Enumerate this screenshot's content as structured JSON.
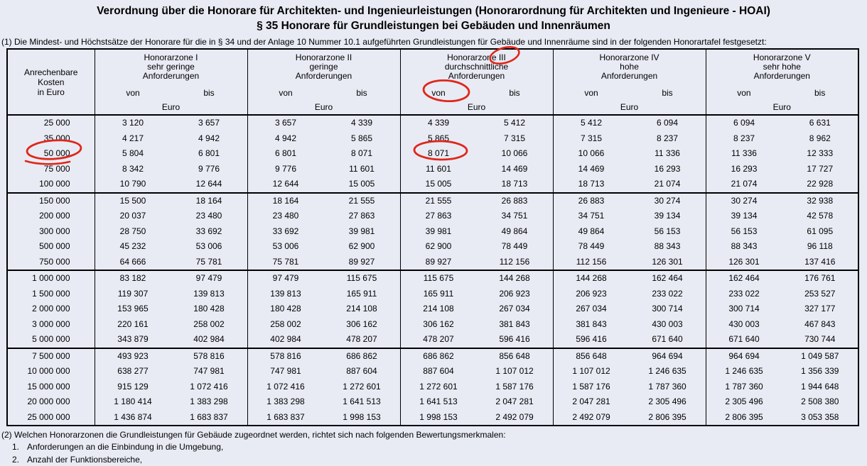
{
  "title_line1": "Verordnung über die Honorare für Architekten- und Ingenieurleistungen (Honorarordnung für Architekten und Ingenieure - HOAI)",
  "title_line2": "§ 35 Honorare für Grundleistungen bei Gebäuden und Innenräumen",
  "intro": "(1) Die Mindest- und Höchstsätze der Honorare für die in § 34 und der Anlage 10 Nummer 10.1 aufgeführten Grundleistungen für Gebäude und Innenräume sind in der folgenden Honorartafel festgesetzt:",
  "table": {
    "row_header": {
      "line1": "Anrechenbare",
      "line2": "Kosten",
      "line3": "in Euro"
    },
    "zones": [
      {
        "name": "Honorarzone I",
        "desc": "sehr geringe",
        "desc2": "Anforderungen",
        "von": "von",
        "bis": "bis",
        "unit": "Euro"
      },
      {
        "name": "Honorarzone II",
        "desc": "geringe",
        "desc2": "Anforderungen",
        "von": "von",
        "bis": "bis",
        "unit": "Euro"
      },
      {
        "name": "Honorarzone III",
        "desc": "durchschnittliche",
        "desc2": "Anforderungen",
        "von": "von",
        "bis": "bis",
        "unit": "Euro"
      },
      {
        "name": "Honorarzone IV",
        "desc": "hohe",
        "desc2": "Anforderungen",
        "von": "von",
        "bis": "bis",
        "unit": "Euro"
      },
      {
        "name": "Honorarzone V",
        "desc": "sehr hohe",
        "desc2": "Anforderungen",
        "von": "von",
        "bis": "bis",
        "unit": "Euro"
      }
    ],
    "groups": [
      {
        "rows": [
          {
            "kosten": "25 000",
            "values": [
              "3 120",
              "3 657",
              "3 657",
              "4 339",
              "4 339",
              "5 412",
              "5 412",
              "6 094",
              "6 094",
              "6 631"
            ]
          },
          {
            "kosten": "35 000",
            "values": [
              "4 217",
              "4 942",
              "4 942",
              "5 865",
              "5 865",
              "7 315",
              "7 315",
              "8 237",
              "8 237",
              "8 962"
            ]
          },
          {
            "kosten": "50 000",
            "values": [
              "5 804",
              "6 801",
              "6 801",
              "8 071",
              "8 071",
              "10 066",
              "10 066",
              "11 336",
              "11 336",
              "12 333"
            ]
          },
          {
            "kosten": "75 000",
            "values": [
              "8 342",
              "9 776",
              "9 776",
              "11 601",
              "11 601",
              "14 469",
              "14 469",
              "16 293",
              "16 293",
              "17 727"
            ]
          },
          {
            "kosten": "100 000",
            "values": [
              "10 790",
              "12 644",
              "12 644",
              "15 005",
              "15 005",
              "18 713",
              "18 713",
              "21 074",
              "21 074",
              "22 928"
            ]
          }
        ]
      },
      {
        "rows": [
          {
            "kosten": "150 000",
            "values": [
              "15 500",
              "18 164",
              "18 164",
              "21 555",
              "21 555",
              "26 883",
              "26 883",
              "30 274",
              "30 274",
              "32 938"
            ]
          },
          {
            "kosten": "200 000",
            "values": [
              "20 037",
              "23 480",
              "23 480",
              "27 863",
              "27 863",
              "34 751",
              "34 751",
              "39 134",
              "39 134",
              "42 578"
            ]
          },
          {
            "kosten": "300 000",
            "values": [
              "28 750",
              "33 692",
              "33 692",
              "39 981",
              "39 981",
              "49 864",
              "49 864",
              "56 153",
              "56 153",
              "61 095"
            ]
          },
          {
            "kosten": "500 000",
            "values": [
              "45 232",
              "53 006",
              "53 006",
              "62 900",
              "62 900",
              "78 449",
              "78 449",
              "88 343",
              "88 343",
              "96 118"
            ]
          },
          {
            "kosten": "750 000",
            "values": [
              "64 666",
              "75 781",
              "75 781",
              "89 927",
              "89 927",
              "112 156",
              "112 156",
              "126 301",
              "126 301",
              "137 416"
            ]
          }
        ]
      },
      {
        "rows": [
          {
            "kosten": "1 000 000",
            "values": [
              "83 182",
              "97 479",
              "97 479",
              "115 675",
              "115 675",
              "144 268",
              "144 268",
              "162 464",
              "162 464",
              "176 761"
            ]
          },
          {
            "kosten": "1 500 000",
            "values": [
              "119 307",
              "139 813",
              "139 813",
              "165 911",
              "165 911",
              "206 923",
              "206 923",
              "233 022",
              "233 022",
              "253 527"
            ]
          },
          {
            "kosten": "2 000 000",
            "values": [
              "153 965",
              "180 428",
              "180 428",
              "214 108",
              "214 108",
              "267 034",
              "267 034",
              "300 714",
              "300 714",
              "327 177"
            ]
          },
          {
            "kosten": "3 000 000",
            "values": [
              "220 161",
              "258 002",
              "258 002",
              "306 162",
              "306 162",
              "381 843",
              "381 843",
              "430 003",
              "430 003",
              "467 843"
            ]
          },
          {
            "kosten": "5 000 000",
            "values": [
              "343 879",
              "402 984",
              "402 984",
              "478 207",
              "478 207",
              "596 416",
              "596 416",
              "671 640",
              "671 640",
              "730 744"
            ]
          }
        ]
      },
      {
        "rows": [
          {
            "kosten": "7 500 000",
            "values": [
              "493 923",
              "578 816",
              "578 816",
              "686 862",
              "686 862",
              "856 648",
              "856 648",
              "964 694",
              "964 694",
              "1 049 587"
            ]
          },
          {
            "kosten": "10 000 000",
            "values": [
              "638 277",
              "747 981",
              "747 981",
              "887 604",
              "887 604",
              "1 107 012",
              "1 107 012",
              "1 246 635",
              "1 246 635",
              "1 356 339"
            ]
          },
          {
            "kosten": "15 000 000",
            "values": [
              "915 129",
              "1 072 416",
              "1 072 416",
              "1 272 601",
              "1 272 601",
              "1 587 176",
              "1 587 176",
              "1 787 360",
              "1 787 360",
              "1 944 648"
            ]
          },
          {
            "kosten": "20 000 000",
            "values": [
              "1 180 414",
              "1 383 298",
              "1 383 298",
              "1 641 513",
              "1 641 513",
              "2 047 281",
              "2 047 281",
              "2 305 496",
              "2 305 496",
              "2 508 380"
            ]
          },
          {
            "kosten": "25 000 000",
            "values": [
              "1 436 874",
              "1 683 837",
              "1 683 837",
              "1 998 153",
              "1 998 153",
              "2 492 079",
              "2 492 079",
              "2 806 395",
              "2 806 395",
              "3 053 358"
            ]
          }
        ]
      }
    ]
  },
  "footer": {
    "para2": "(2) Welchen Honorarzonen die Grundleistungen für Gebäude zugeordnet werden, richtet sich nach folgenden Bewertungsmerkmalen:",
    "items": [
      {
        "num": "1.",
        "text": "Anforderungen an die Einbindung in die Umgebung,"
      },
      {
        "num": "2.",
        "text": "Anzahl der Funktionsbereiche,"
      }
    ]
  },
  "annotations": {
    "color": "#e02619",
    "items": [
      {
        "name": "circle-honorarzone-iii",
        "target": "Honorarzone III"
      },
      {
        "name": "circle-von-zone-iii",
        "target": "von (Honorarzone III)"
      },
      {
        "name": "circle-kosten-50000",
        "target": "50 000"
      },
      {
        "name": "circle-wert-8071",
        "target": "8 071"
      }
    ]
  }
}
